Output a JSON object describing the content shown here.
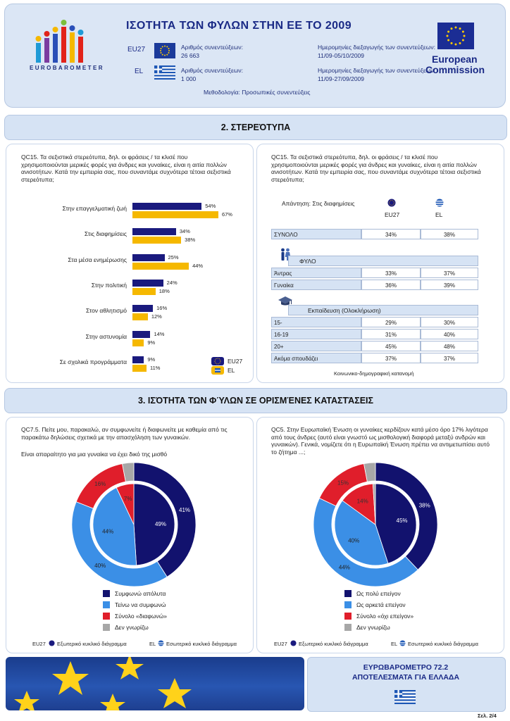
{
  "header": {
    "title": "ΙΣΟΤΗΤΑ ΤΩΝ ΦΥΛΩΝ ΣΤΗΝ ΕΕ ΤΟ 2009",
    "logo_text": "EUROBAROMETER",
    "eu27_code": "EU27",
    "el_code": "EL",
    "interviews_label_eu": "Αριθμός συνεντεύξεων:",
    "interviews_value_eu": "26 663",
    "interviews_label_el": "Αριθμός συνεντεύξεων:",
    "interviews_value_el": "1 000",
    "dates_label_eu": "Ημερομηνίες διεξαγωγής των συνεντεύξεων:",
    "dates_value_eu": "11/09-05/10/2009",
    "dates_label_el": "Ημερομηνίες διεξαγωγής των συνεντεύξεων:",
    "dates_value_el": "11/09-27/09/2009",
    "methodology": "Μεθοδολογία: Προσωπικές συνεντεύξεις",
    "commission_line1": "European",
    "commission_line2": "Commission"
  },
  "section2": {
    "title": "2. ΣΤΕΡΕΌΤΥΠΑ",
    "question_left": "QC15. Τα σεξιστικά στερεότυπα, δηλ. οι φράσεις / τα κλισέ που χρησιμοποιούνται μερικές φορές για άνδρες και γυναίκες, είναι η αιτία πολλών ανισοτήτων. Κατά την εμπειρία σας, που συναντάμε συχνότερα τέτοια σεξιστικά στερεότυπα;",
    "question_right": "QC15. Τα σεξιστικά στερεότυπα, δηλ. οι φράσεις / τα κλισέ που χρησιμοποιούνται μερικές φορές για άνδρες και γυναίκες, είναι η αιτία πολλών ανισοτήτων. Κατά την εμπειρία σας, που συναντάμε συχνότερα τέτοια σεξιστικά στερεότυπα;",
    "legend_eu": "EU27",
    "legend_el": "EL",
    "answer_label": "Απάντηση: Στις διαφημίσεις",
    "col_eu": "EU27",
    "col_el": "EL",
    "total_label": "ΣΥΝΟΛΟ",
    "total_eu": "34%",
    "total_el": "38%",
    "gender_header": "ΦΥΛΟ",
    "gender_rows": [
      {
        "label": "Άντρας",
        "eu": "33%",
        "el": "37%"
      },
      {
        "label": "Γυναίκα",
        "eu": "36%",
        "el": "39%"
      }
    ],
    "edu_header": "Εκπαίδευση (Ολοκλήρωση)",
    "edu_rows": [
      {
        "label": "15-",
        "eu": "29%",
        "el": "30%"
      },
      {
        "label": "16-19",
        "eu": "31%",
        "el": "40%"
      },
      {
        "label": "20+",
        "eu": "45%",
        "el": "48%"
      },
      {
        "label": "Ακόμα σπουδάζει",
        "eu": "37%",
        "el": "37%"
      }
    ],
    "footnote": "Κοινωνικο-δημογραφική κατανομή"
  },
  "section3": {
    "title": "3. ΙΣΌΤΗΤΑ ΤΩΝ ΦΎΛΩΝ ΣΕ ΟΡΙΣΜΈΝΕΣ ΚΑΤΑΣΤΆΣΕΙΣ",
    "question_left": "QC7.5. Πείτε μου, παρακαλώ, αν συμφωνείτε ή διαφωνείτε με καθεμία από τις παρακάτω δηλώσεις σχετικά με την απασχόληση των γυναικών.",
    "subquestion_left": "Είναι απαραίτητο για μια γυναίκα να έχει δικό της μισθό",
    "question_right": "QC5. Στην Ευρωπαϊκή Ένωση οι γυναίκες κερδίζουν κατά μέσο όρο 17% λιγότερα από τους άνδρες (αυτό είναι γνωστό ως μισθολογική διαφορά μεταξύ ανδρών και γυναικών). Γενικά, νομίζετε ότι η Ευρωπαϊκή Ένωση πρέπει να αντιμετωπίσει αυτό το ζήτημα ...;",
    "legend_left": [
      "Συμφωνώ απόλυτα",
      "Τείνω να συμφωνώ",
      "Σύνολο «διαφωνώ»",
      "Δεν γνωρίζω"
    ],
    "legend_right": [
      "Ως πολύ επείγον",
      "Ως αρκετά επείγον",
      "Σύνολο «όχι επείγον»",
      "Δεν γνωρίζω"
    ],
    "outer_note_left": "EU27",
    "outer_note_text": "Εξωτερικό κυκλικό διάγραμμα",
    "inner_note_left": "EL",
    "inner_note_text": "Εσωτερικό κυκλικό διάγραμμα"
  },
  "footer": {
    "line1": "ΕΥΡΩΒΑΡΟΜΕΤΡΟ 72.2",
    "line2": "ΑΠΟΤΕΛΕΣΜΑΤΑ ΓΙΑ ΕΛΛΑΔΑ",
    "page": "Σελ. 2/4"
  },
  "colors": {
    "eu_bar": "#1a1a7e",
    "el_bar": "#f5b800",
    "pie_dark": "#12126e",
    "pie_light": "#3b8fe6",
    "pie_red": "#e01e2b",
    "pie_grey": "#a7a7a7"
  },
  "chart_data": [
    {
      "type": "bar",
      "categories": [
        "Στην επαγγελματική ζωή",
        "Στις διαφημίσεις",
        "Στα μέσα ενημέρωσης",
        "Στην πολιτική",
        "Στον αθλητισμό",
        "Στην αστυνομία",
        "Σε σχολικά προγράμματα"
      ],
      "series": [
        {
          "name": "EU27",
          "values": [
            54,
            34,
            25,
            24,
            16,
            14,
            9
          ]
        },
        {
          "name": "EL",
          "values": [
            67,
            38,
            44,
            18,
            12,
            9,
            11
          ]
        }
      ],
      "value_labels_eu": [
        "54%",
        "34%",
        "25%",
        "24%",
        "16%",
        "14%",
        "9%"
      ],
      "value_labels_el": [
        "67%",
        "38%",
        "44%",
        "18%",
        "12%",
        "9%",
        "11%"
      ]
    },
    {
      "type": "pie",
      "categories": [
        "Συμφωνώ απόλυτα",
        "Τείνω να συμφωνώ",
        "Σύνολο «διαφωνώ»",
        "Δεν γνωρίζω"
      ],
      "outer_EU27": [
        41,
        40,
        16,
        3
      ],
      "inner_EL": [
        49,
        44,
        7,
        0
      ],
      "outer_labels": [
        "41%",
        "40%",
        "16%"
      ],
      "inner_labels": [
        "49%",
        "44%",
        "7%"
      ]
    },
    {
      "type": "pie",
      "categories": [
        "Ως πολύ επείγον",
        "Ως αρκετά επείγον",
        "Σύνολο «όχι επείγον»",
        "Δεν γνωρίζω"
      ],
      "outer_EU27": [
        38,
        44,
        15,
        3
      ],
      "inner_EL": [
        45,
        40,
        14,
        1
      ],
      "outer_labels": [
        "38%",
        "44%",
        "15%"
      ],
      "inner_labels": [
        "45%",
        "40%",
        "14%"
      ]
    }
  ]
}
